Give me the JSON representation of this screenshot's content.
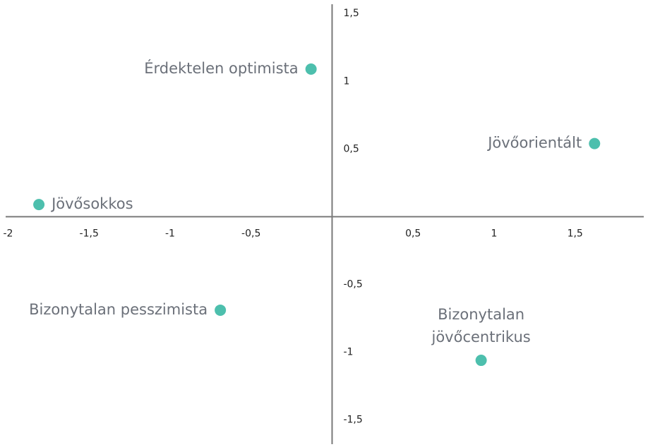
{
  "chart_data": {
    "type": "scatter",
    "labels": [
      [
        "Érdektelen optimista"
      ],
      [
        "Jövőorientált"
      ],
      [
        "Jövősokkos"
      ],
      [
        "Bizonytalan pesszimista"
      ],
      [
        "Bizonytalan",
        "jövőcentrikus"
      ]
    ],
    "x": [
      -0.13,
      1.62,
      -1.81,
      -0.69,
      0.92
    ],
    "values": [
      1.09,
      0.54,
      0.09,
      -0.69,
      -1.06
    ],
    "color": "#4dbfad",
    "xlim": [
      -2.05,
      1.95
    ],
    "ylim": [
      -1.7,
      1.6
    ],
    "xticks": [
      -2,
      {
        "value": -1.5,
        "label": "-1,5"
      },
      -1,
      {
        "value": -0.5,
        "label": "-0,5"
      },
      {
        "value": 0.5,
        "label": "0,5"
      },
      1,
      {
        "value": 1.5,
        "label": "1,5"
      },
      2
    ],
    "yticks": [
      {
        "value": 1.5,
        "label": "1,5"
      },
      1,
      {
        "value": 0.5,
        "label": "0,5"
      },
      {
        "value": -0.5,
        "label": "-0,5"
      },
      -1,
      {
        "value": -1.5,
        "label": "-1,5"
      }
    ]
  }
}
